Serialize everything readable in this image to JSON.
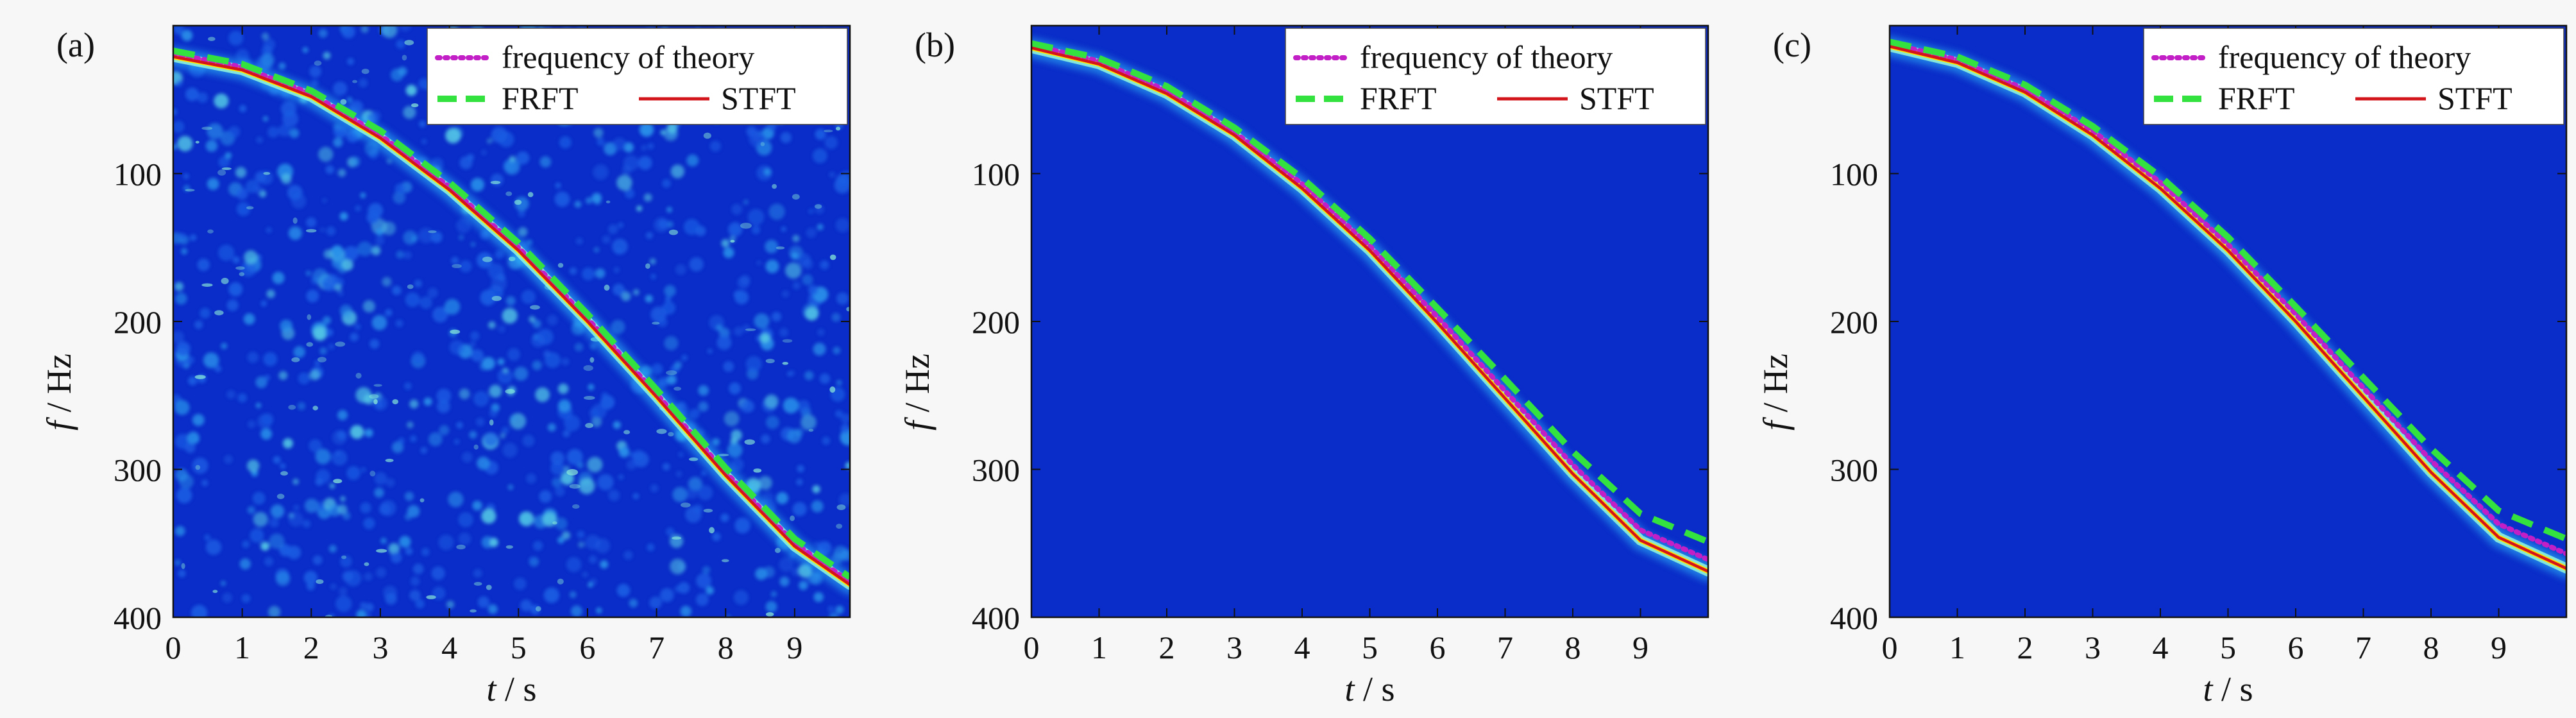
{
  "figure": {
    "background": "#f7f7f7"
  },
  "chart_data": [
    {
      "type": "line",
      "panel_label": "(a)",
      "heatmap_style": "noisy",
      "xlabel_var": "t",
      "xlabel_unit": " / s",
      "ylabel_var": "f",
      "ylabel_unit": " / Hz",
      "xlim": [
        0,
        9.8
      ],
      "ylim": [
        400,
        0
      ],
      "y_inverted": true,
      "x_ticks": [
        0,
        1,
        2,
        3,
        4,
        5,
        6,
        7,
        8,
        9
      ],
      "y_ticks": [
        100,
        200,
        300,
        400
      ],
      "legend": {
        "position": "top-right",
        "entries": [
          "frequency of theory",
          "FRFT",
          "STFT"
        ]
      },
      "colors": {
        "background": "#0a2cc8",
        "theory": "#c21fc6",
        "frft": "#33e23e",
        "stft": "#d3141a",
        "ridge": "#ffe600"
      },
      "series": [
        {
          "name": "frequency of theory",
          "x": [
            0,
            1,
            2,
            3,
            4,
            5,
            6,
            7,
            8,
            9,
            9.8
          ],
          "y": [
            19,
            28,
            46,
            74,
            109,
            150,
            198,
            249,
            302,
            350,
            376
          ]
        },
        {
          "name": "FRFT",
          "x": [
            0,
            1,
            2,
            3,
            4,
            5,
            6,
            7,
            8,
            9,
            9.8
          ],
          "y": [
            17,
            26,
            44,
            71,
            106,
            147,
            195,
            246,
            299,
            347,
            373
          ]
        },
        {
          "name": "STFT",
          "x": [
            0,
            1,
            2,
            3,
            4,
            5,
            6,
            7,
            8,
            9,
            9.8
          ],
          "y": [
            21,
            30,
            48,
            76,
            111,
            152,
            200,
            251,
            304,
            352,
            378
          ]
        }
      ]
    },
    {
      "type": "line",
      "panel_label": "(b)",
      "heatmap_style": "clean",
      "xlabel_var": "t",
      "xlabel_unit": " / s",
      "ylabel_var": "f",
      "ylabel_unit": " / Hz",
      "xlim": [
        0,
        10
      ],
      "ylim": [
        400,
        0
      ],
      "y_inverted": true,
      "x_ticks": [
        0,
        1,
        2,
        3,
        4,
        5,
        6,
        7,
        8,
        9
      ],
      "y_ticks": [
        100,
        200,
        300,
        400
      ],
      "legend": {
        "position": "top-right",
        "entries": [
          "frequency of theory",
          "FRFT",
          "STFT"
        ]
      },
      "colors": {
        "background": "#0a2cc8",
        "theory": "#c21fc6",
        "frft": "#33e23e",
        "stft": "#d3141a",
        "ridge": "#ffe600"
      },
      "series": [
        {
          "name": "frequency of theory",
          "x": [
            0,
            1,
            2,
            3,
            4,
            5,
            6,
            7,
            8,
            9,
            10
          ],
          "y": [
            13,
            24,
            44,
            72,
            107,
            149,
            197,
            247,
            297,
            341,
            361
          ]
        },
        {
          "name": "FRFT",
          "x": [
            0,
            1,
            2,
            3,
            4,
            5,
            6,
            7,
            8,
            9,
            10
          ],
          "y": [
            12,
            22,
            41,
            69,
            103,
            144,
            191,
            239,
            288,
            330,
            349
          ]
        },
        {
          "name": "STFT",
          "x": [
            0,
            1,
            2,
            3,
            4,
            5,
            6,
            7,
            8,
            9,
            10
          ],
          "y": [
            15,
            26,
            46,
            74,
            110,
            152,
            201,
            252,
            303,
            348,
            369
          ]
        }
      ]
    },
    {
      "type": "line",
      "panel_label": "(c)",
      "heatmap_style": "clean",
      "xlabel_var": "t",
      "xlabel_unit": " / s",
      "ylabel_var": "f",
      "ylabel_unit": " / Hz",
      "xlim": [
        0,
        10
      ],
      "ylim": [
        400,
        0
      ],
      "y_inverted": true,
      "x_ticks": [
        0,
        1,
        2,
        3,
        4,
        5,
        6,
        7,
        8,
        9
      ],
      "y_ticks": [
        100,
        200,
        300,
        400
      ],
      "legend": {
        "position": "top-right",
        "entries": [
          "frequency of theory",
          "FRFT",
          "STFT"
        ]
      },
      "colors": {
        "background": "#0a2cc8",
        "theory": "#c21fc6",
        "frft": "#33e23e",
        "stft": "#d3141a",
        "ridge": "#ffe600"
      },
      "series": [
        {
          "name": "frequency of theory",
          "x": [
            0,
            1,
            2,
            3,
            4,
            5,
            6,
            7,
            8,
            9,
            10
          ],
          "y": [
            12,
            23,
            43,
            71,
            106,
            148,
            195,
            245,
            294,
            337,
            357
          ]
        },
        {
          "name": "FRFT",
          "x": [
            0,
            1,
            2,
            3,
            4,
            5,
            6,
            7,
            8,
            9,
            10
          ],
          "y": [
            11,
            21,
            40,
            68,
            102,
            143,
            190,
            238,
            286,
            328,
            347
          ]
        },
        {
          "name": "STFT",
          "x": [
            0,
            1,
            2,
            3,
            4,
            5,
            6,
            7,
            8,
            9,
            10
          ],
          "y": [
            14,
            25,
            45,
            74,
            110,
            152,
            200,
            251,
            302,
            346,
            367
          ]
        }
      ]
    }
  ]
}
